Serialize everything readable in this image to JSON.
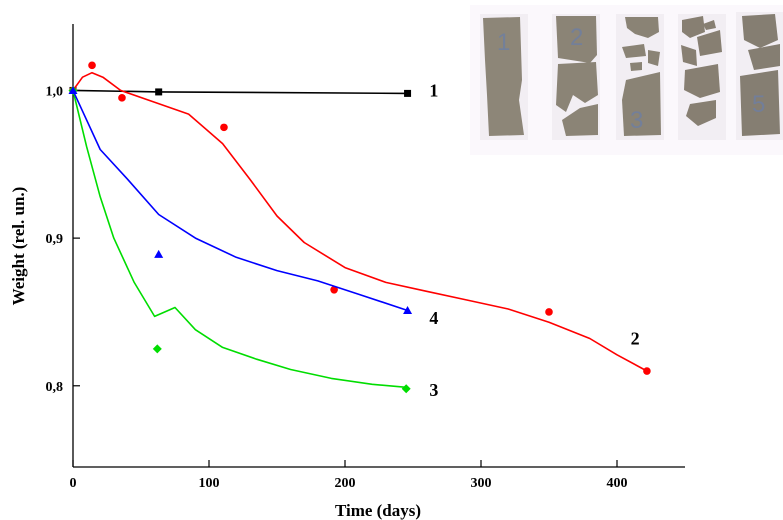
{
  "chart_data": {
    "type": "line",
    "xlabel": "Time (days)",
    "ylabel": "Weight (rel. un.)",
    "xlim": [
      0,
      450
    ],
    "ylim": [
      0.745,
      1.045
    ],
    "x_ticks": [
      0,
      100,
      200,
      300,
      400
    ],
    "x_tick_labels": [
      "0",
      "100",
      "200",
      "300",
      "400"
    ],
    "y_ticks": [
      0.8,
      0.9,
      1.0
    ],
    "y_tick_labels": [
      "0,8",
      "0,9",
      "1,0"
    ],
    "grid": false,
    "legend": "none",
    "series": [
      {
        "label": "1",
        "color": "#000000",
        "marker": "square",
        "points": [
          [
            0,
            1.0
          ],
          [
            63,
            0.999
          ],
          [
            246,
            0.998
          ]
        ],
        "curve": [
          [
            0,
            1.0
          ],
          [
            63,
            0.999
          ],
          [
            246,
            0.998
          ]
        ]
      },
      {
        "label": "2",
        "color": "#ff0000",
        "marker": "circle",
        "points": [
          [
            0,
            1.0
          ],
          [
            14,
            1.017
          ],
          [
            36,
            0.995
          ],
          [
            111,
            0.975
          ],
          [
            192,
            0.865
          ],
          [
            350,
            0.85
          ],
          [
            422,
            0.81
          ]
        ],
        "curve": [
          [
            0,
            1.0
          ],
          [
            7,
            1.009
          ],
          [
            14,
            1.012
          ],
          [
            22,
            1.009
          ],
          [
            35,
            1.0
          ],
          [
            60,
            0.992
          ],
          [
            85,
            0.984
          ],
          [
            110,
            0.964
          ],
          [
            130,
            0.94
          ],
          [
            150,
            0.915
          ],
          [
            170,
            0.897
          ],
          [
            200,
            0.88
          ],
          [
            230,
            0.87
          ],
          [
            260,
            0.864
          ],
          [
            290,
            0.858
          ],
          [
            320,
            0.852
          ],
          [
            350,
            0.843
          ],
          [
            380,
            0.832
          ],
          [
            400,
            0.821
          ],
          [
            422,
            0.81
          ]
        ]
      },
      {
        "label": "3",
        "color": "#00dd00",
        "marker": "diamond",
        "points": [
          [
            0,
            1.0
          ],
          [
            62,
            0.825
          ],
          [
            245,
            0.798
          ]
        ],
        "curve": [
          [
            0,
            1.0
          ],
          [
            10,
            0.962
          ],
          [
            20,
            0.928
          ],
          [
            30,
            0.9
          ],
          [
            45,
            0.87
          ],
          [
            60,
            0.847
          ],
          [
            75,
            0.853
          ],
          [
            90,
            0.838
          ],
          [
            110,
            0.826
          ],
          [
            135,
            0.818
          ],
          [
            160,
            0.811
          ],
          [
            190,
            0.805
          ],
          [
            220,
            0.801
          ],
          [
            245,
            0.799
          ]
        ]
      },
      {
        "label": "4",
        "color": "#0000ff",
        "marker": "triangle",
        "points": [
          [
            0,
            1.0
          ],
          [
            63,
            0.889
          ],
          [
            246,
            0.851
          ]
        ],
        "curve": [
          [
            0,
            1.0
          ],
          [
            20,
            0.96
          ],
          [
            40,
            0.94
          ],
          [
            63,
            0.916
          ],
          [
            90,
            0.9
          ],
          [
            120,
            0.887
          ],
          [
            150,
            0.878
          ],
          [
            180,
            0.871
          ],
          [
            210,
            0.862
          ],
          [
            246,
            0.851
          ]
        ]
      }
    ],
    "label_positions": [
      {
        "label": "1",
        "at": [
          262,
          1.0
        ]
      },
      {
        "label": "2",
        "at": [
          410,
          0.832
        ]
      },
      {
        "label": "3",
        "at": [
          262,
          0.797
        ]
      },
      {
        "label": "4",
        "at": [
          262,
          0.846
        ]
      }
    ],
    "inset_photo": {
      "strip_numbers": [
        "1",
        "2",
        "3",
        "5"
      ]
    }
  }
}
